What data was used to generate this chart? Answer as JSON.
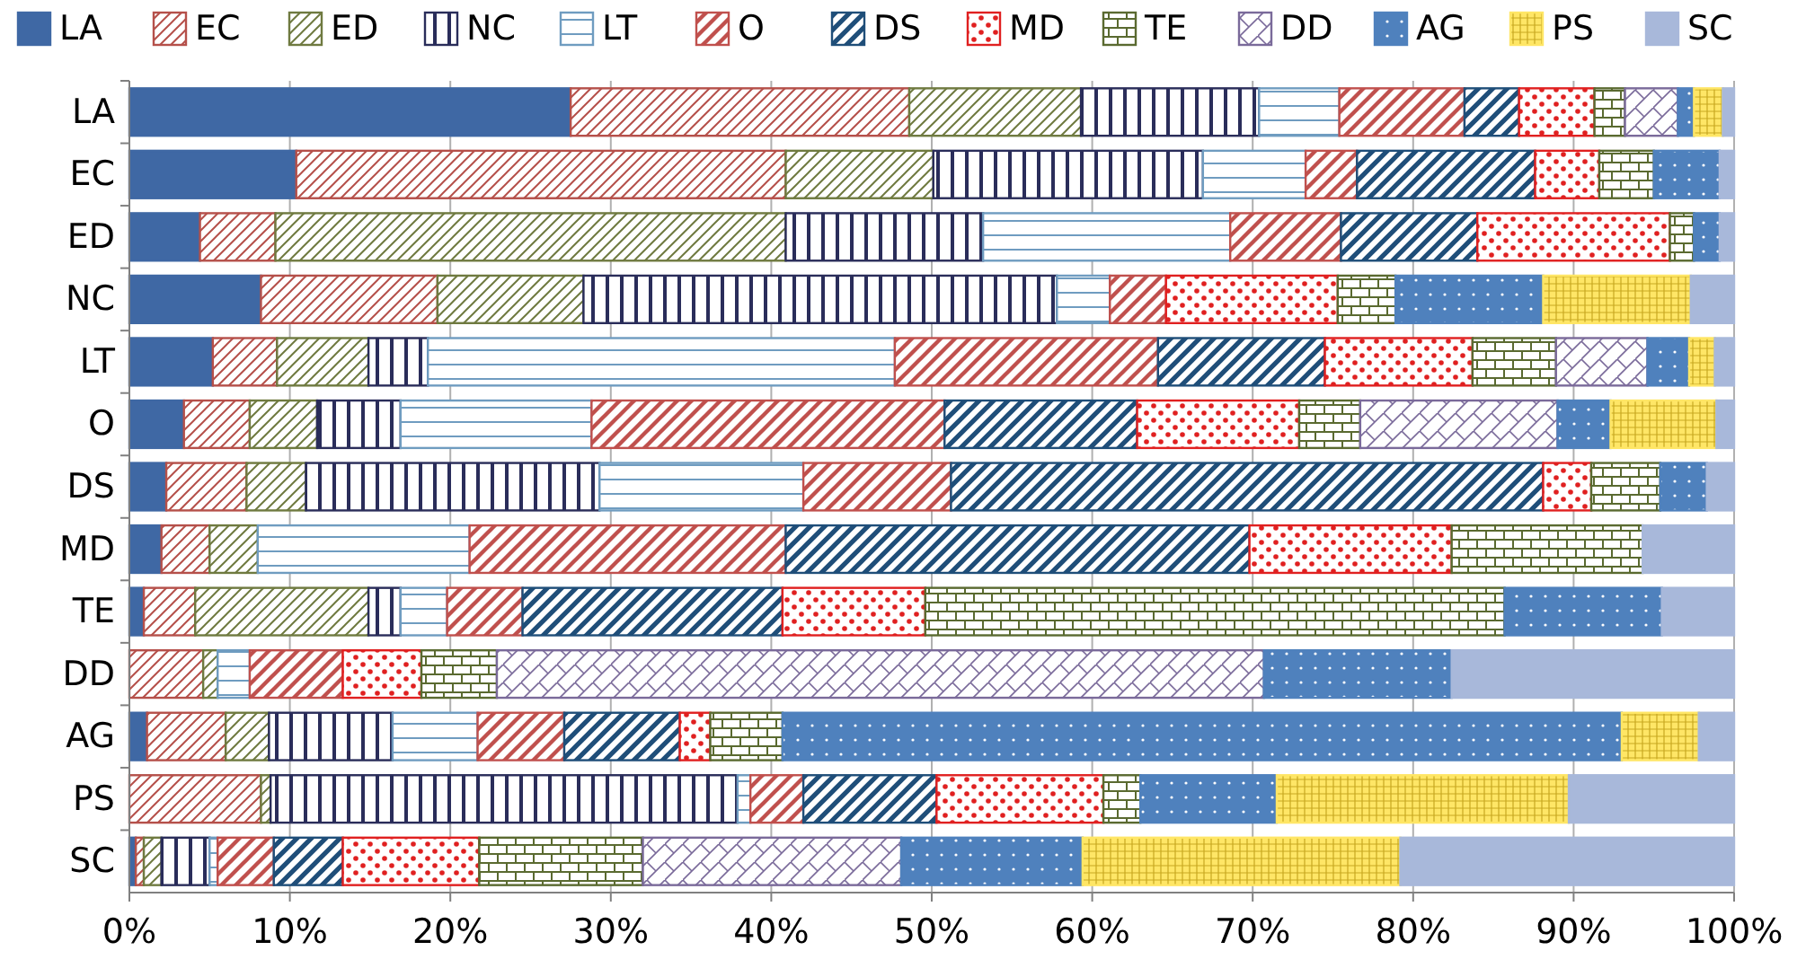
{
  "chart_data": {
    "type": "bar",
    "orientation": "horizontal",
    "stacked": true,
    "legend": "top",
    "grid": "x",
    "categories": [
      "LA",
      "EC",
      "ED",
      "NC",
      "LT",
      "O",
      "DS",
      "MD",
      "TE",
      "DD",
      "AG",
      "PS",
      "SC"
    ],
    "xlim": [
      0,
      100
    ],
    "xticks": [
      {
        "value": 0,
        "label": "0%"
      },
      {
        "value": 10,
        "label": "10%"
      },
      {
        "value": 20,
        "label": "20%"
      },
      {
        "value": 30,
        "label": "30%"
      },
      {
        "value": 40,
        "label": "40%"
      },
      {
        "value": 50,
        "label": "50%"
      },
      {
        "value": 60,
        "label": "60%"
      },
      {
        "value": 70,
        "label": "70%"
      },
      {
        "value": 80,
        "label": "80%"
      },
      {
        "value": 90,
        "label": "90%"
      },
      {
        "value": 100,
        "label": "100%"
      }
    ],
    "series": [
      {
        "name": "LA",
        "color": "#3f68a4",
        "values": [
          27.5,
          10.4,
          4.4,
          8.2,
          5.2,
          3.4,
          2.3,
          2.0,
          0.9,
          0,
          1.1,
          0,
          0.4
        ]
      },
      {
        "name": "EC",
        "color": "#b5504a",
        "values": [
          21.1,
          30.5,
          4.7,
          11.0,
          4.0,
          4.1,
          5.0,
          3.0,
          3.2,
          4.6,
          4.9,
          8.2,
          0.5
        ]
      },
      {
        "name": "ED",
        "color": "#6f7a40",
        "values": [
          10.7,
          9.2,
          31.8,
          9.1,
          5.7,
          4.2,
          3.7,
          3.0,
          10.8,
          0.9,
          2.7,
          0.6,
          1.1
        ]
      },
      {
        "name": "NC",
        "color": "#2a2d5a",
        "values": [
          11.1,
          16.8,
          12.3,
          29.5,
          3.7,
          5.2,
          18.3,
          0,
          2.0,
          0,
          7.7,
          29.1,
          3.0
        ]
      },
      {
        "name": "LT",
        "color": "#6f9cc0",
        "values": [
          5.0,
          6.4,
          15.4,
          3.3,
          29.1,
          11.9,
          12.7,
          13.2,
          2.9,
          2.0,
          5.3,
          0.8,
          0.5
        ]
      },
      {
        "name": "O",
        "color": "#c0504d",
        "values": [
          7.8,
          3.2,
          6.9,
          3.5,
          16.4,
          22.0,
          9.2,
          19.7,
          4.7,
          5.8,
          5.4,
          3.3,
          3.5
        ]
      },
      {
        "name": "DS",
        "color": "#1f4e79",
        "values": [
          3.4,
          11.1,
          8.5,
          0,
          10.4,
          12.0,
          36.9,
          28.9,
          16.2,
          0,
          7.2,
          8.3,
          4.3
        ]
      },
      {
        "name": "MD",
        "color": "#e02020",
        "values": [
          4.7,
          4.0,
          12.0,
          10.7,
          9.2,
          10.1,
          3.0,
          12.6,
          8.9,
          4.9,
          1.9,
          10.4,
          8.5
        ]
      },
      {
        "name": "TE",
        "color": "#5a6a30",
        "values": [
          1.9,
          3.4,
          1.5,
          3.6,
          5.2,
          3.8,
          4.3,
          11.9,
          36.1,
          4.7,
          4.5,
          2.3,
          10.2
        ]
      },
      {
        "name": "DD",
        "color": "#7a6a9a",
        "values": [
          3.3,
          0,
          0,
          0,
          5.7,
          12.3,
          0,
          0,
          0,
          47.8,
          0,
          0,
          16.1
        ]
      },
      {
        "name": "AG",
        "color": "#4f81bd",
        "values": [
          1.0,
          4.1,
          1.6,
          9.2,
          2.6,
          3.3,
          2.9,
          0,
          9.8,
          11.7,
          52.3,
          8.5,
          11.3
        ]
      },
      {
        "name": "PS",
        "color": "#ffe666",
        "values": [
          1.8,
          0,
          0,
          9.2,
          1.6,
          6.6,
          0,
          0,
          0,
          0,
          4.8,
          18.2,
          19.8
        ]
      },
      {
        "name": "SC",
        "color": "#a8b8da",
        "values": [
          0.7,
          0.9,
          0.9,
          2.7,
          1.2,
          1.1,
          1.7,
          5.7,
          4.5,
          17.6,
          2.2,
          10.3,
          20.8
        ]
      }
    ]
  }
}
